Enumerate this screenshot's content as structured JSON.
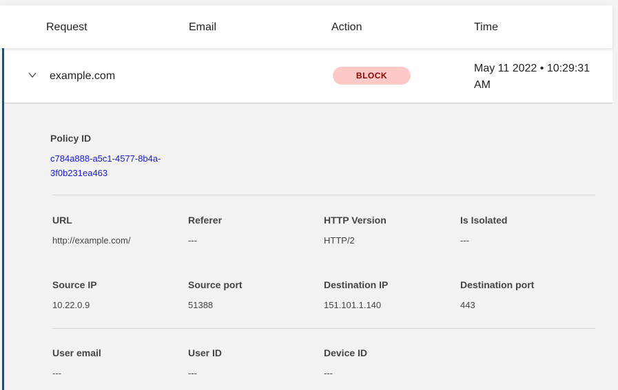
{
  "columns": [
    "Request",
    "Email",
    "Action",
    "Time"
  ],
  "row": {
    "request": "example.com",
    "action": "BLOCK",
    "time": "May 11 2022 • 10:29:31 AM"
  },
  "details": {
    "policy_label": "Policy ID",
    "policy_id": "c784a888-a5c1-4577-8b4a-3f0b231ea463",
    "fields": [
      {
        "label": "URL",
        "value": "http://example.com/"
      },
      {
        "label": "Referer",
        "value": "---"
      },
      {
        "label": "HTTP Version",
        "value": "HTTP/2"
      },
      {
        "label": "Is Isolated",
        "value": "---"
      },
      {
        "label": "Source IP",
        "value": "10.22.0.9"
      },
      {
        "label": "Source port",
        "value": "51388"
      },
      {
        "label": "Destination IP",
        "value": "151.101.1.140"
      },
      {
        "label": "Destination port",
        "value": "443"
      },
      {
        "label": "User email",
        "value": "---"
      },
      {
        "label": "User ID",
        "value": "---"
      },
      {
        "label": "Device ID",
        "value": "---"
      }
    ]
  },
  "colors": {
    "accent": "#0b4ea2",
    "block_bg": "#fcc9c7",
    "block_text": "#8b0000",
    "link": "#1a1acc"
  }
}
